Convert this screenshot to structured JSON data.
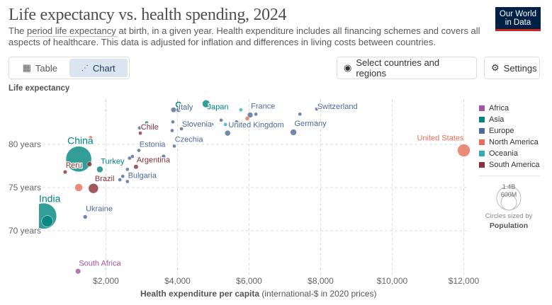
{
  "header": {
    "title": "Life expectancy vs. health spending, 2024",
    "subtitle_pre": "The ",
    "subtitle_link": "period life expectancy",
    "subtitle_post": " at birth, in a given year. Health expenditure includes all financing schemes and covers all aspects of healthcare. This data is adjusted for inflation and differences in living costs between countries.",
    "logo": "Our World in Data"
  },
  "toolbar": {
    "table": "Table",
    "chart": "Chart",
    "select": "Select countries and regions",
    "settings": "Settings"
  },
  "colors": {
    "Africa": "#a2559c",
    "Asia": "#00847e",
    "Europe": "#4c6a9c",
    "North America": "#e56e5a",
    "Oceania": "#38aaba",
    "South America": "#883039"
  },
  "legend": {
    "items": [
      "Africa",
      "Asia",
      "Europe",
      "North America",
      "Oceania",
      "South America"
    ],
    "size_values": [
      "1.4B",
      "600M"
    ],
    "size_caption": "Circles sized by",
    "size_variable": "Population"
  },
  "chart_data": {
    "type": "scatter",
    "title": "Life expectancy vs. health spending, 2024",
    "ylabel": "Life expectancy",
    "xlabel_bold": "Health expenditure per capita",
    "xlabel_rest": " (international-$ in 2020 prices)",
    "xlim": [
      200,
      12200
    ],
    "ylim": [
      64.5,
      85.2
    ],
    "x_ticks": [
      {
        "v": 2000,
        "l": "$2,000"
      },
      {
        "v": 4000,
        "l": "$4,000"
      },
      {
        "v": 6000,
        "l": "$6,000"
      },
      {
        "v": 8000,
        "l": "$8,000"
      },
      {
        "v": 10000,
        "l": "$10,000"
      },
      {
        "v": 12000,
        "l": "$12,000"
      }
    ],
    "y_ticks": [
      {
        "v": 70,
        "l": "70 years"
      },
      {
        "v": 75,
        "l": "75 years"
      },
      {
        "v": 80,
        "l": "80 years"
      }
    ],
    "grid": true,
    "legend_position": "right",
    "points": [
      {
        "name": "India",
        "region": "Asia",
        "x": 260,
        "y": 71.7,
        "pop": 1440,
        "lx": 0,
        "ly": -20,
        "big": true
      },
      {
        "region": "Asia",
        "x": 360,
        "y": 71.1,
        "pop": 280
      },
      {
        "name": "China",
        "region": "Asia",
        "x": 1240,
        "y": 78.3,
        "pop": 1410,
        "lx": -8,
        "ly": -21,
        "big": true
      },
      {
        "name": "South Africa",
        "region": "Africa",
        "x": 1220,
        "y": 65.3,
        "pop": 63,
        "lx": 0,
        "ly": -8
      },
      {
        "name": "Ukraine",
        "region": "Europe",
        "x": 1420,
        "y": 71.6,
        "pop": 38,
        "lx": 0,
        "ly": -8
      },
      {
        "name": "Brazil",
        "region": "South America",
        "x": 1650,
        "y": 74.9,
        "pop": 212,
        "lx": 0,
        "ly": -10
      },
      {
        "name": "Peru",
        "region": "South America",
        "x": 860,
        "y": 76.8,
        "pop": 34,
        "lx": 0,
        "ly": -6
      },
      {
        "region": "South America",
        "x": 1540,
        "y": 77.7,
        "pop": 52
      },
      {
        "region": "North America",
        "x": 1240,
        "y": 75.0,
        "pop": 130
      },
      {
        "region": "North America",
        "x": 1570,
        "y": 80.8,
        "pop": 5
      },
      {
        "name": "Turkey",
        "region": "Asia",
        "x": 1830,
        "y": 77.1,
        "pop": 86,
        "lx": 0,
        "ly": -8
      },
      {
        "name": "Argentina",
        "region": "South America",
        "x": 2840,
        "y": 77.4,
        "pop": 46,
        "lx": 0,
        "ly": -6
      },
      {
        "name": "Bulgaria",
        "region": "Europe",
        "x": 2600,
        "y": 75.7,
        "pop": 6.5,
        "lx": 0,
        "ly": -5
      },
      {
        "region": "Europe",
        "x": 2390,
        "y": 75.9,
        "pop": 5
      },
      {
        "region": "Europe",
        "x": 2470,
        "y": 76.3,
        "pop": 5
      },
      {
        "region": "Europe",
        "x": 2600,
        "y": 77.1,
        "pop": 5
      },
      {
        "region": "Europe",
        "x": 2660,
        "y": 78.4,
        "pop": 5
      },
      {
        "region": "Europe",
        "x": 2740,
        "y": 78.6,
        "pop": 5
      },
      {
        "name": "Estonia",
        "region": "Europe",
        "x": 2920,
        "y": 79.3,
        "pop": 1.4,
        "lx": 0,
        "ly": -5
      },
      {
        "name": "Chile",
        "region": "South America",
        "x": 2960,
        "y": 81.3,
        "pop": 20,
        "lx": 0,
        "ly": -5
      },
      {
        "region": "Europe",
        "x": 2940,
        "y": 81.9,
        "pop": 5
      },
      {
        "region": "Asia",
        "x": 3140,
        "y": 82.5,
        "pop": 5
      },
      {
        "region": "Europe",
        "x": 3610,
        "y": 78.6,
        "pop": 37
      },
      {
        "name": "Czechia",
        "region": "Europe",
        "x": 3910,
        "y": 79.8,
        "pop": 10.5,
        "lx": 0,
        "ly": -6
      },
      {
        "name": "Italy",
        "region": "Europe",
        "x": 3890,
        "y": 84.0,
        "pop": 59,
        "lx": 6,
        "ly": 0
      },
      {
        "region": "Europe",
        "x": 4030,
        "y": 84.0,
        "pop": 48
      },
      {
        "region": "Asia",
        "x": 4030,
        "y": 84.6,
        "pop": 52,
        "ring": true
      },
      {
        "name": "Slovenia",
        "region": "Europe",
        "x": 4110,
        "y": 81.8,
        "pop": 2.1,
        "lx": 0,
        "ly": -3
      },
      {
        "region": "Europe",
        "x": 3870,
        "y": 82.6,
        "pop": 5
      },
      {
        "region": "Europe",
        "x": 3850,
        "y": 81.6,
        "pop": 5
      },
      {
        "name": "Japan",
        "region": "Asia",
        "x": 4800,
        "y": 84.7,
        "pop": 124,
        "lx": 0,
        "ly": 8
      },
      {
        "region": "Europe",
        "x": 5220,
        "y": 82.8,
        "pop": 5
      },
      {
        "region": "Europe",
        "x": 4960,
        "y": 82.3,
        "pop": 5
      },
      {
        "region": "Oceania",
        "x": 5770,
        "y": 84.0,
        "pop": 27
      },
      {
        "region": "North America",
        "x": 5950,
        "y": 83.0,
        "pop": 40
      },
      {
        "region": "Oceania",
        "x": 5340,
        "y": 82.3,
        "pop": 5
      },
      {
        "name": "United Kingdom",
        "region": "Europe",
        "x": 5400,
        "y": 81.3,
        "pop": 69,
        "lx": 0,
        "ly": -8
      },
      {
        "region": "Europe",
        "x": 5650,
        "y": 82.6,
        "pop": 5
      },
      {
        "name": "France",
        "region": "Europe",
        "x": 6030,
        "y": 83.4,
        "pop": 66,
        "lx": 0,
        "ly": -9
      },
      {
        "region": "Europe",
        "x": 6190,
        "y": 83.5,
        "pop": 5
      },
      {
        "name": "Germany",
        "region": "Europe",
        "x": 7240,
        "y": 81.4,
        "pop": 84,
        "lx": 0,
        "ly": -9
      },
      {
        "region": "Europe",
        "x": 7420,
        "y": 83.5,
        "pop": 5
      },
      {
        "name": "Switzerland",
        "region": "Europe",
        "x": 7890,
        "y": 84.1,
        "pop": 1,
        "lx": 0,
        "ly": 0
      },
      {
        "name": "United States",
        "region": "North America",
        "x": 12000,
        "y": 79.3,
        "pop": 340,
        "lx": 0,
        "ly": -14,
        "anchor": "end"
      }
    ]
  }
}
